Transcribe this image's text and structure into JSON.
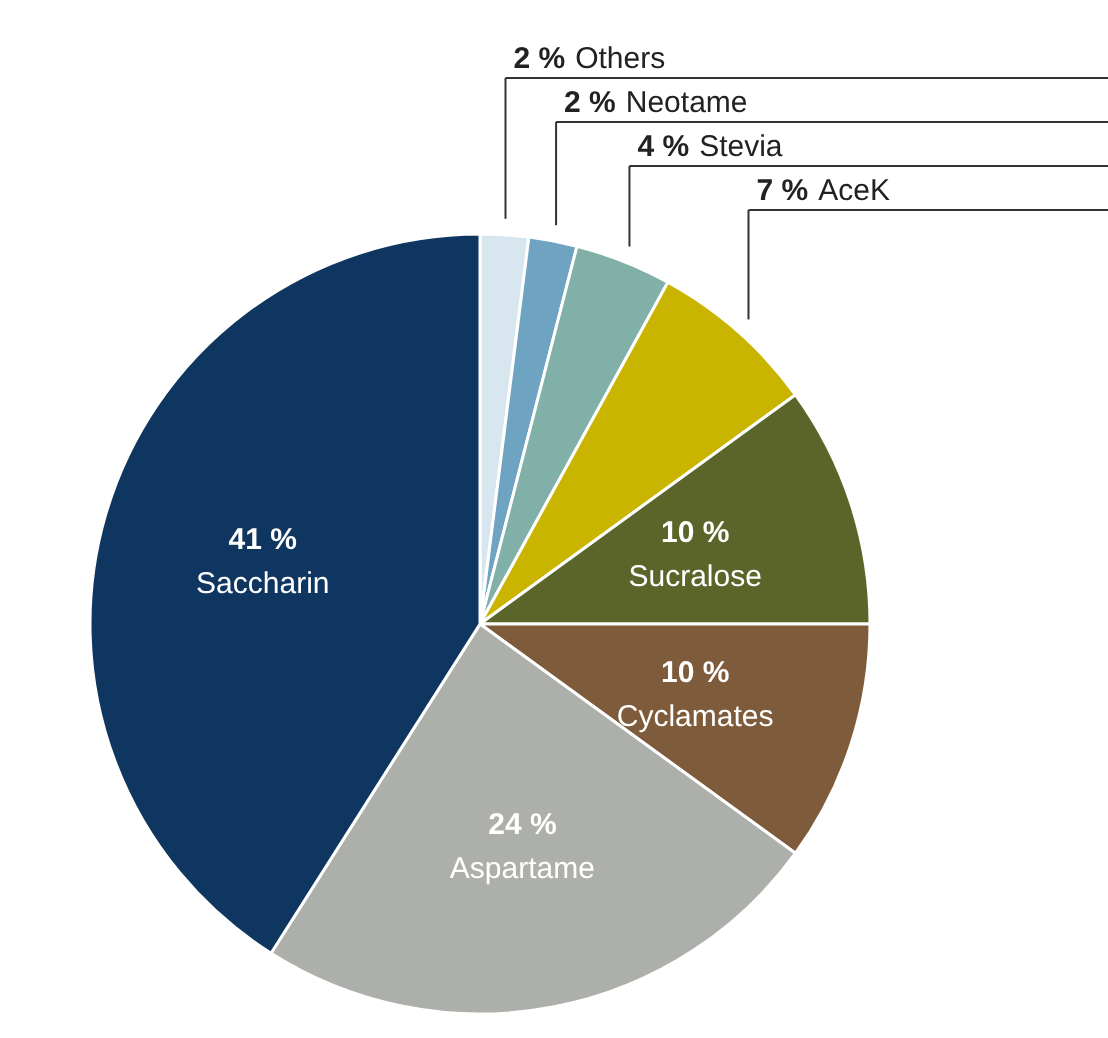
{
  "chart_data": {
    "type": "pie",
    "categories": [
      "Others",
      "Neotame",
      "Stevia",
      "AceK",
      "Sucralose",
      "Cyclamates",
      "Aspartame",
      "Saccharin"
    ],
    "values": [
      2,
      2,
      4,
      7,
      10,
      10,
      24,
      41
    ],
    "colors": [
      "#d8e7ef",
      "#6ea4c2",
      "#80b0a7",
      "#c9b400",
      "#5b6529",
      "#7e5b3a",
      "#adafaa",
      "#0f3660"
    ],
    "value_labels": [
      "2 %",
      "2 %",
      "4 %",
      "7 %",
      "10 %",
      "10 %",
      "24 %",
      "41 %"
    ]
  }
}
